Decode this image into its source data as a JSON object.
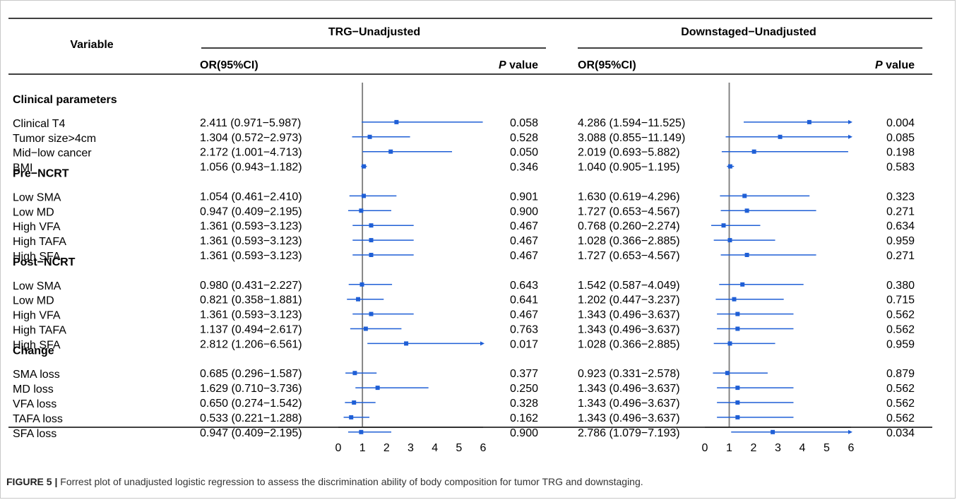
{
  "header": {
    "variable_label": "Variable",
    "panels": [
      {
        "title": "TRG−Unadjusted",
        "or_header": "OR(95%CI)",
        "p_header_italic": "P",
        "p_header_rest": " value"
      },
      {
        "title": "Downstaged−Unadjusted",
        "or_header": "OR(95%CI)",
        "p_header_italic": "P",
        "p_header_rest": " value"
      }
    ]
  },
  "colors": {
    "estimate": "#1f5fd6",
    "axis": "#000000",
    "ref_line": "#7a7a7a"
  },
  "chart_data": {
    "type": "forest",
    "rows": [
      {
        "label": "Clinical parameters",
        "header": true
      },
      {
        "label": "Clinical T4",
        "trg": {
          "or": 2.411,
          "lo": 0.971,
          "hi": 5.987,
          "text": "2.411 (0.971−5.987)",
          "p": "0.058"
        },
        "down": {
          "or": 4.286,
          "lo": 1.594,
          "hi": 11.525,
          "text": "4.286 (1.594−11.525)",
          "p": "0.004"
        }
      },
      {
        "label": "Tumor size>4cm",
        "trg": {
          "or": 1.304,
          "lo": 0.572,
          "hi": 2.973,
          "text": "1.304 (0.572−2.973)",
          "p": "0.528"
        },
        "down": {
          "or": 3.088,
          "lo": 0.855,
          "hi": 11.149,
          "text": "3.088 (0.855−11.149)",
          "p": "0.085"
        }
      },
      {
        "label": "Mid−low cancer",
        "trg": {
          "or": 2.172,
          "lo": 1.001,
          "hi": 4.713,
          "text": "2.172 (1.001−4.713)",
          "p": "0.050"
        },
        "down": {
          "or": 2.019,
          "lo": 0.693,
          "hi": 5.882,
          "text": "2.019 (0.693−5.882)",
          "p": "0.198"
        }
      },
      {
        "label": "BMI",
        "trg": {
          "or": 1.056,
          "lo": 0.943,
          "hi": 1.182,
          "text": "1.056 (0.943−1.182)",
          "p": "0.346"
        },
        "down": {
          "or": 1.04,
          "lo": 0.905,
          "hi": 1.195,
          "text": "1.040 (0.905−1.195)",
          "p": "0.583"
        }
      },
      {
        "label": "Pre−NCRT",
        "header": true
      },
      {
        "label": "Low SMA",
        "trg": {
          "or": 1.054,
          "lo": 0.461,
          "hi": 2.41,
          "text": "1.054 (0.461−2.410)",
          "p": "0.901"
        },
        "down": {
          "or": 1.63,
          "lo": 0.619,
          "hi": 4.296,
          "text": "1.630 (0.619−4.296)",
          "p": "0.323"
        }
      },
      {
        "label": "Low MD",
        "trg": {
          "or": 0.947,
          "lo": 0.409,
          "hi": 2.195,
          "text": "0.947 (0.409−2.195)",
          "p": "0.900"
        },
        "down": {
          "or": 1.727,
          "lo": 0.653,
          "hi": 4.567,
          "text": "1.727 (0.653−4.567)",
          "p": "0.271"
        }
      },
      {
        "label": "High VFA",
        "trg": {
          "or": 1.361,
          "lo": 0.593,
          "hi": 3.123,
          "text": "1.361 (0.593−3.123)",
          "p": "0.467"
        },
        "down": {
          "or": 0.768,
          "lo": 0.26,
          "hi": 2.274,
          "text": "0.768 (0.260−2.274)",
          "p": "0.634"
        }
      },
      {
        "label": "High TAFA",
        "trg": {
          "or": 1.361,
          "lo": 0.593,
          "hi": 3.123,
          "text": "1.361 (0.593−3.123)",
          "p": "0.467"
        },
        "down": {
          "or": 1.028,
          "lo": 0.366,
          "hi": 2.885,
          "text": "1.028 (0.366−2.885)",
          "p": "0.959"
        }
      },
      {
        "label": "High SFA",
        "trg": {
          "or": 1.361,
          "lo": 0.593,
          "hi": 3.123,
          "text": "1.361 (0.593−3.123)",
          "p": "0.467"
        },
        "down": {
          "or": 1.727,
          "lo": 0.653,
          "hi": 4.567,
          "text": "1.727 (0.653−4.567)",
          "p": "0.271"
        }
      },
      {
        "label": "Post−NCRT",
        "header": true
      },
      {
        "label": "Low SMA",
        "trg": {
          "or": 0.98,
          "lo": 0.431,
          "hi": 2.227,
          "text": "0.980 (0.431−2.227)",
          "p": "0.643"
        },
        "down": {
          "or": 1.542,
          "lo": 0.587,
          "hi": 4.049,
          "text": "1.542 (0.587−4.049)",
          "p": "0.380"
        }
      },
      {
        "label": "Low MD",
        "trg": {
          "or": 0.821,
          "lo": 0.358,
          "hi": 1.881,
          "text": "0.821 (0.358−1.881)",
          "p": "0.641"
        },
        "down": {
          "or": 1.202,
          "lo": 0.447,
          "hi": 3.237,
          "text": "1.202 (0.447−3.237)",
          "p": "0.715"
        }
      },
      {
        "label": "High VFA",
        "trg": {
          "or": 1.361,
          "lo": 0.593,
          "hi": 3.123,
          "text": "1.361 (0.593−3.123)",
          "p": "0.467"
        },
        "down": {
          "or": 1.343,
          "lo": 0.496,
          "hi": 3.637,
          "text": "1.343 (0.496−3.637)",
          "p": "0.562"
        }
      },
      {
        "label": "High TAFA",
        "trg": {
          "or": 1.137,
          "lo": 0.494,
          "hi": 2.617,
          "text": "1.137 (0.494−2.617)",
          "p": "0.763"
        },
        "down": {
          "or": 1.343,
          "lo": 0.496,
          "hi": 3.637,
          "text": "1.343 (0.496−3.637)",
          "p": "0.562"
        }
      },
      {
        "label": "High SFA",
        "trg": {
          "or": 2.812,
          "lo": 1.206,
          "hi": 6.561,
          "text": "2.812 (1.206−6.561)",
          "p": "0.017"
        },
        "down": {
          "or": 1.028,
          "lo": 0.366,
          "hi": 2.885,
          "text": "1.028 (0.366−2.885)",
          "p": "0.959"
        }
      },
      {
        "label": "Change",
        "header": true
      },
      {
        "label": "SMA loss",
        "trg": {
          "or": 0.685,
          "lo": 0.296,
          "hi": 1.587,
          "text": "0.685 (0.296−1.587)",
          "p": "0.377"
        },
        "down": {
          "or": 0.923,
          "lo": 0.331,
          "hi": 2.578,
          "text": "0.923 (0.331−2.578)",
          "p": "0.879"
        }
      },
      {
        "label": "MD loss",
        "trg": {
          "or": 1.629,
          "lo": 0.71,
          "hi": 3.736,
          "text": "1.629 (0.710−3.736)",
          "p": "0.250"
        },
        "down": {
          "or": 1.343,
          "lo": 0.496,
          "hi": 3.637,
          "text": "1.343 (0.496−3.637)",
          "p": "0.562"
        }
      },
      {
        "label": "VFA loss",
        "trg": {
          "or": 0.65,
          "lo": 0.274,
          "hi": 1.542,
          "text": "0.650 (0.274−1.542)",
          "p": "0.328"
        },
        "down": {
          "or": 1.343,
          "lo": 0.496,
          "hi": 3.637,
          "text": "1.343 (0.496−3.637)",
          "p": "0.562"
        }
      },
      {
        "label": "TAFA loss",
        "trg": {
          "or": 0.533,
          "lo": 0.221,
          "hi": 1.288,
          "text": "0.533 (0.221−1.288)",
          "p": "0.162"
        },
        "down": {
          "or": 1.343,
          "lo": 0.496,
          "hi": 3.637,
          "text": "1.343 (0.496−3.637)",
          "p": "0.562"
        }
      },
      {
        "label": "SFA loss",
        "trg": {
          "or": 0.947,
          "lo": 0.409,
          "hi": 2.195,
          "text": "0.947 (0.409−2.195)",
          "p": "0.900"
        },
        "down": {
          "or": 2.786,
          "lo": 1.079,
          "hi": 7.193,
          "text": "2.786 (1.079−7.193)",
          "p": "0.034"
        }
      }
    ],
    "x_axis": {
      "range": [
        0,
        6
      ],
      "ticks": [
        "0",
        "1",
        "2",
        "3",
        "4",
        "5",
        "6"
      ],
      "reference": 1
    }
  },
  "caption": {
    "label": "FIGURE 5 |",
    "text": " Forrest plot of unadjusted logistic regression to assess the discrimination ability of body composition for tumor TRG and downstaging."
  }
}
